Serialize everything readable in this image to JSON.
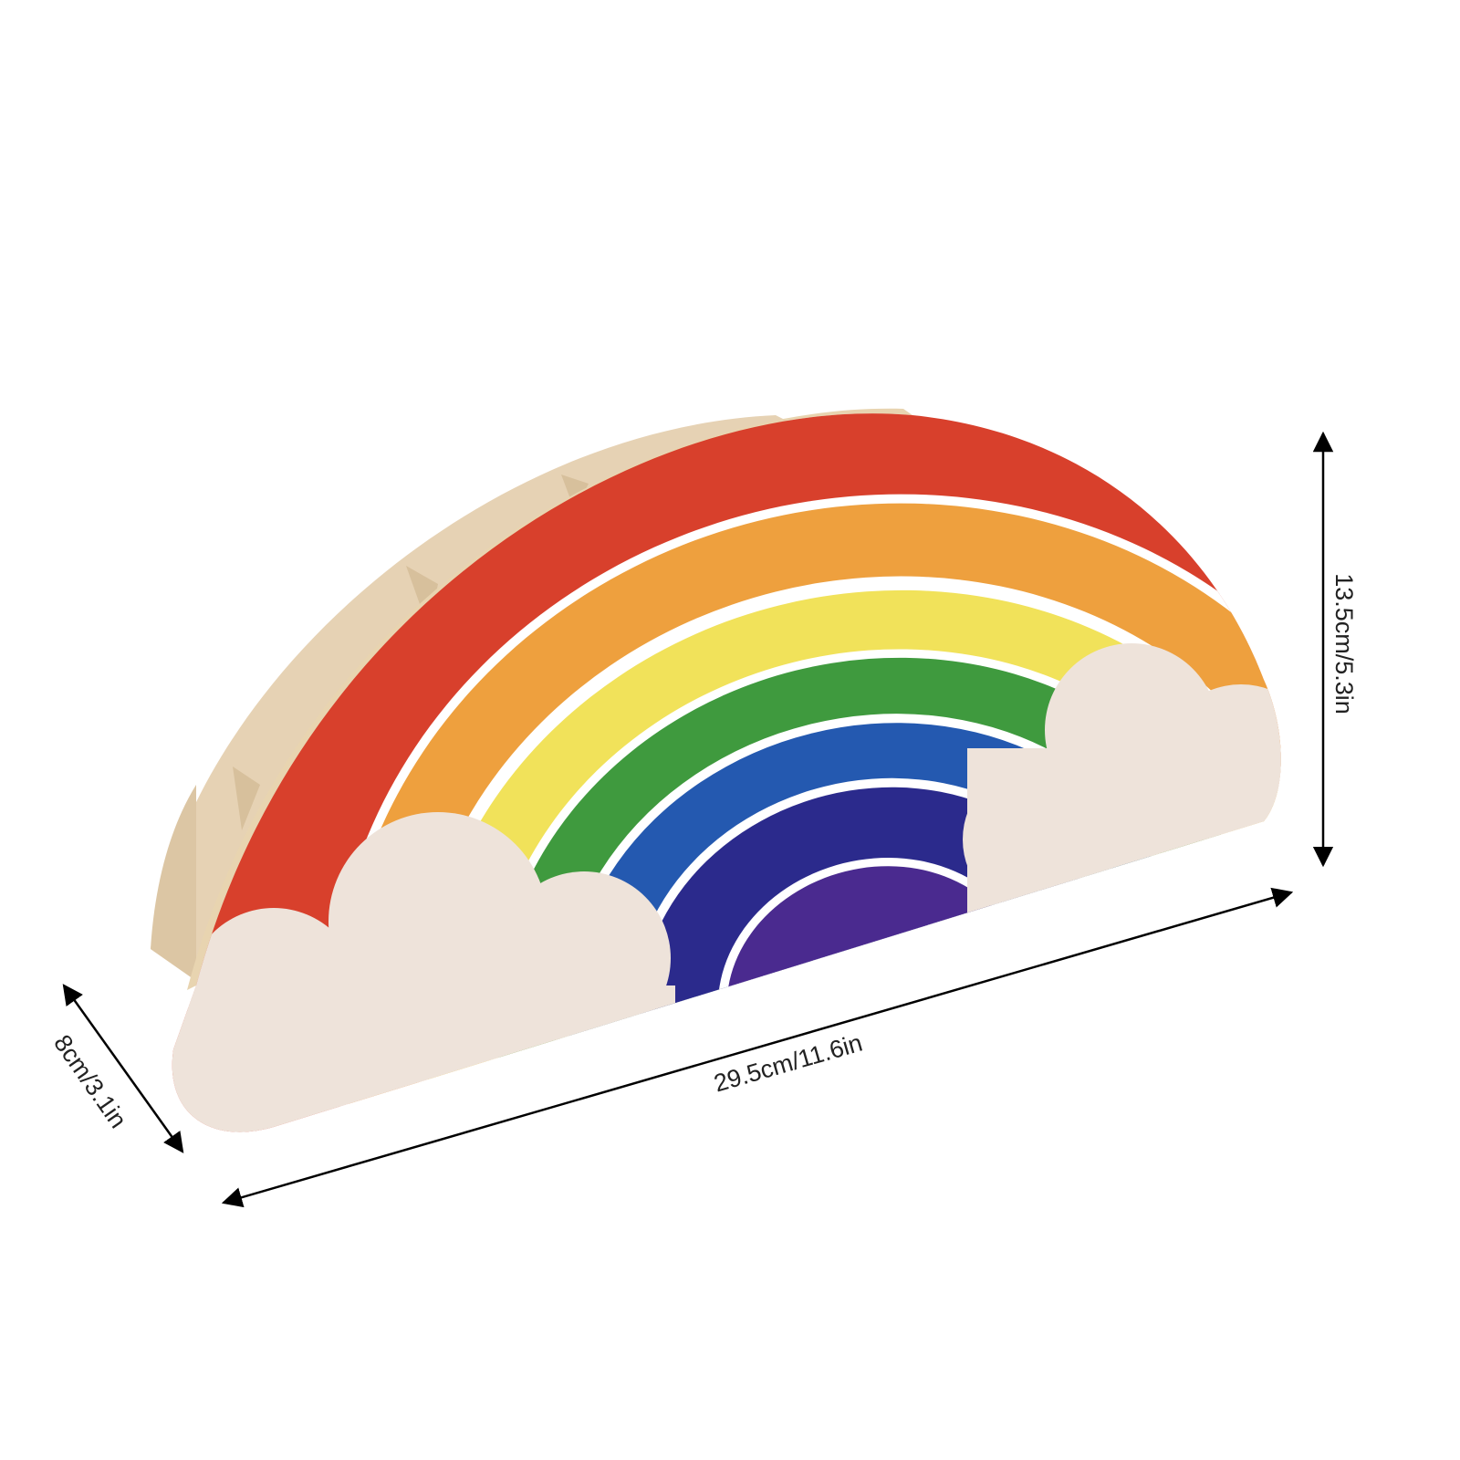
{
  "product": {
    "colors": {
      "red": "#d8402c",
      "orange": "#eea03e",
      "yellow": "#f1e25a",
      "green": "#3f9a3e",
      "blue": "#2459b0",
      "indigo": "#2b2a8c",
      "purple": "#4a2a8f",
      "cloud": "#eee3da",
      "wood": "#e6d2b4"
    }
  },
  "dimensions": {
    "length": "29.5cm/11.6in",
    "height": "13.5cm/5.3in",
    "depth": "8cm/3.1in"
  }
}
